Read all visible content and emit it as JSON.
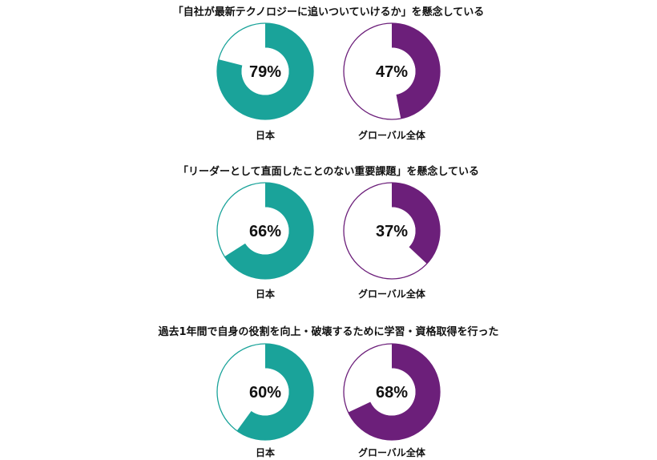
{
  "colors": {
    "japan": "#1AA39A",
    "global": "#6C1F7A",
    "background": "#FFFFFF"
  },
  "chart_data": [
    {
      "type": "pie",
      "title": "「自社が最新テクノロジーに追いついていけるか」を懸念している",
      "categories": [
        "日本",
        "グローバル全体"
      ],
      "values": [
        79,
        47
      ],
      "value_labels": [
        "79%",
        "47%"
      ]
    },
    {
      "type": "pie",
      "title": "「リーダーとして直面したことのない重要課題」を懸念している",
      "categories": [
        "日本",
        "グローバル全体"
      ],
      "values": [
        66,
        37
      ],
      "value_labels": [
        "66%",
        "37%"
      ]
    },
    {
      "type": "pie",
      "title": "過去1年間で自身の役割を向上・破壊するために学習・資格取得を行った",
      "categories": [
        "日本",
        "グローバル全体"
      ],
      "values": [
        60,
        68
      ],
      "value_labels": [
        "60%",
        "68%"
      ]
    }
  ]
}
